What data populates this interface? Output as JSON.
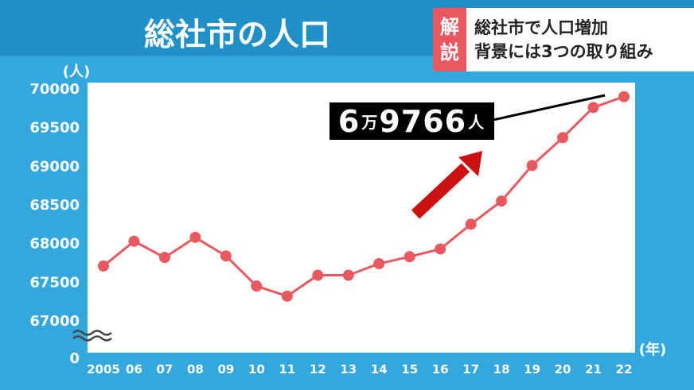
{
  "title": "総社市の人口",
  "banner": {
    "tag_line1": "解",
    "tag_line2": "説",
    "line1": "総社市で人口増加",
    "line2": "背景には3つの取り組み"
  },
  "callout": {
    "num1": "6",
    "unit1": "万",
    "num2": "9766",
    "unit2": "人"
  },
  "colors": {
    "background": "#34a7dc",
    "line": "#e8595f",
    "arrow": "#cc1111"
  },
  "chart_data": {
    "type": "line",
    "ylabel": "(人)",
    "xlabel": "(年)",
    "ylim": [
      67000,
      70000
    ],
    "y_ticks": [
      "70000",
      "69500",
      "69000",
      "68500",
      "68000",
      "67500",
      "67000"
    ],
    "y_zero_label": "0",
    "categories": [
      "2005",
      "06",
      "07",
      "08",
      "09",
      "10",
      "11",
      "12",
      "13",
      "14",
      "15",
      "16",
      "17",
      "18",
      "19",
      "20",
      "21",
      "22"
    ],
    "series": [
      {
        "values": [
          67700,
          68020,
          67810,
          68070,
          67830,
          67440,
          67310,
          67580,
          67580,
          67730,
          67820,
          67920,
          68240,
          68540,
          69000,
          69360,
          69750,
          69890
        ]
      }
    ],
    "grid": false
  }
}
